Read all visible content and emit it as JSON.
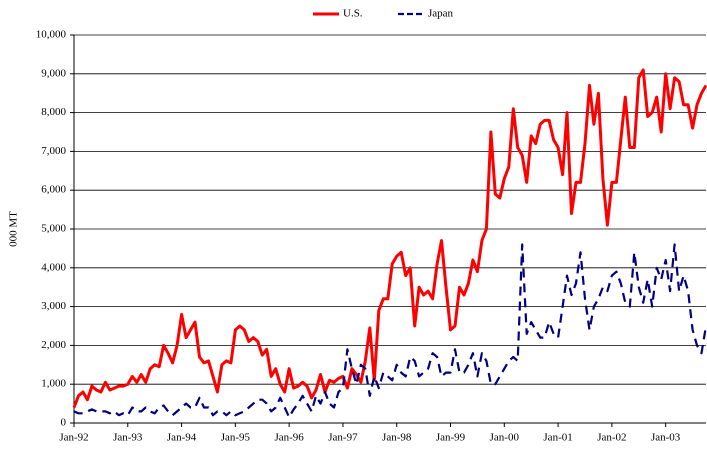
{
  "chart_data": {
    "type": "line",
    "y_label": "000 MT",
    "categories": [
      "Jan-92",
      null,
      null,
      null,
      null,
      null,
      null,
      null,
      null,
      null,
      null,
      null,
      "Jan-93",
      null,
      null,
      null,
      null,
      null,
      null,
      null,
      null,
      null,
      null,
      null,
      "Jan-94",
      null,
      null,
      null,
      null,
      null,
      null,
      null,
      null,
      null,
      null,
      null,
      "Jan-95",
      null,
      null,
      null,
      null,
      null,
      null,
      null,
      null,
      null,
      null,
      null,
      "Jan-96",
      null,
      null,
      null,
      null,
      null,
      null,
      null,
      null,
      null,
      null,
      null,
      "Jan-97",
      null,
      null,
      null,
      null,
      null,
      null,
      null,
      null,
      null,
      null,
      null,
      "Jan-98",
      null,
      null,
      null,
      null,
      null,
      null,
      null,
      null,
      null,
      null,
      null,
      "Jan-99",
      null,
      null,
      null,
      null,
      null,
      null,
      null,
      null,
      null,
      null,
      null,
      "Jan-00",
      null,
      null,
      null,
      null,
      null,
      null,
      null,
      null,
      null,
      null,
      null,
      "Jan-01",
      null,
      null,
      null,
      null,
      null,
      null,
      null,
      null,
      null,
      null,
      null,
      "Jan-02",
      null,
      null,
      null,
      null,
      null,
      null,
      null,
      null,
      null,
      null,
      null,
      "Jan-03",
      null,
      null,
      null,
      null,
      null,
      null,
      null,
      null,
      null
    ],
    "series": [
      {
        "name": "U.S.",
        "color": "#ff0000",
        "dash": "none",
        "width": 3,
        "values": [
          400,
          700,
          800,
          600,
          950,
          850,
          800,
          1050,
          850,
          900,
          950,
          950,
          1000,
          1200,
          1050,
          1250,
          1050,
          1400,
          1500,
          1450,
          2000,
          1800,
          1550,
          2000,
          2800,
          2200,
          2400,
          2600,
          1700,
          1550,
          1600,
          1200,
          800,
          1500,
          1600,
          1550,
          2400,
          2500,
          2400,
          2100,
          2200,
          2100,
          1750,
          1900,
          1200,
          1400,
          1000,
          800,
          1400,
          900,
          950,
          1050,
          950,
          650,
          850,
          1250,
          800,
          1100,
          1050,
          1150,
          1200,
          900,
          1400,
          1250,
          1050,
          1600,
          2450,
          1100,
          2900,
          3200,
          3200,
          4100,
          4300,
          4400,
          3800,
          4000,
          2500,
          3500,
          3300,
          3400,
          3200,
          4100,
          4700,
          3500,
          2400,
          2500,
          3500,
          3300,
          3600,
          4200,
          3900,
          4700,
          5000,
          7500,
          5900,
          5800,
          6300,
          6600,
          8100,
          7100,
          6900,
          6200,
          7400,
          7200,
          7700,
          7800,
          7800,
          7300,
          7100,
          6400,
          8000,
          5400,
          6200,
          6200,
          7200,
          8700,
          7700,
          8500,
          6300,
          5100,
          6200,
          6200,
          7300,
          8400,
          7100,
          7100,
          8900,
          9100,
          7900,
          8000,
          8400,
          7500,
          9000,
          8100,
          8900,
          8800,
          8200,
          8200,
          7600,
          8200,
          8500,
          8700
        ]
      },
      {
        "name": "Japan",
        "color": "#000080",
        "dash": "9 6",
        "width": 2.2,
        "values": [
          300,
          250,
          250,
          300,
          350,
          300,
          300,
          300,
          250,
          300,
          200,
          250,
          200,
          400,
          300,
          300,
          400,
          300,
          250,
          400,
          450,
          300,
          200,
          300,
          400,
          500,
          400,
          400,
          650,
          400,
          400,
          200,
          300,
          300,
          200,
          300,
          200,
          250,
          300,
          400,
          500,
          600,
          600,
          500,
          300,
          400,
          650,
          400,
          150,
          350,
          500,
          700,
          500,
          300,
          700,
          500,
          800,
          500,
          400,
          800,
          900,
          1900,
          1400,
          1000,
          1500,
          1400,
          700,
          1200,
          900,
          1300,
          1200,
          1100,
          1500,
          1300,
          1200,
          1700,
          1600,
          1200,
          1300,
          1400,
          1800,
          1700,
          1200,
          1300,
          1300,
          1900,
          1300,
          1300,
          1500,
          1800,
          1200,
          1800,
          1600,
          1000,
          1000,
          1200,
          1400,
          1600,
          1700,
          1600,
          4600,
          2300,
          2600,
          2400,
          2200,
          2200,
          2600,
          2300,
          2200,
          3000,
          3800,
          3300,
          3600,
          4400,
          3200,
          2400,
          3000,
          3200,
          3500,
          3400,
          3800,
          3900,
          3600,
          3100,
          3000,
          4400,
          3500,
          3100,
          3700,
          3000,
          4000,
          3700,
          4200,
          3400,
          4600,
          3400,
          3800,
          3400,
          2400,
          2000,
          1800,
          2500
        ]
      }
    ],
    "ylim": [
      0,
      10000
    ],
    "yticks": [
      0,
      {
        "value": 1000,
        "label": "1,000"
      },
      {
        "value": 2000,
        "label": "2,000"
      },
      {
        "value": 3000,
        "label": "3,000"
      },
      {
        "value": 4000,
        "label": "4,000"
      },
      {
        "value": 5000,
        "label": "5,000"
      },
      {
        "value": 6000,
        "label": "6,000"
      },
      {
        "value": 7000,
        "label": "7,000"
      },
      {
        "value": 8000,
        "label": "8,000"
      },
      {
        "value": 9000,
        "label": "9,000"
      },
      {
        "value": 10000,
        "label": "10,000"
      }
    ],
    "grid": true,
    "legend": "top"
  }
}
